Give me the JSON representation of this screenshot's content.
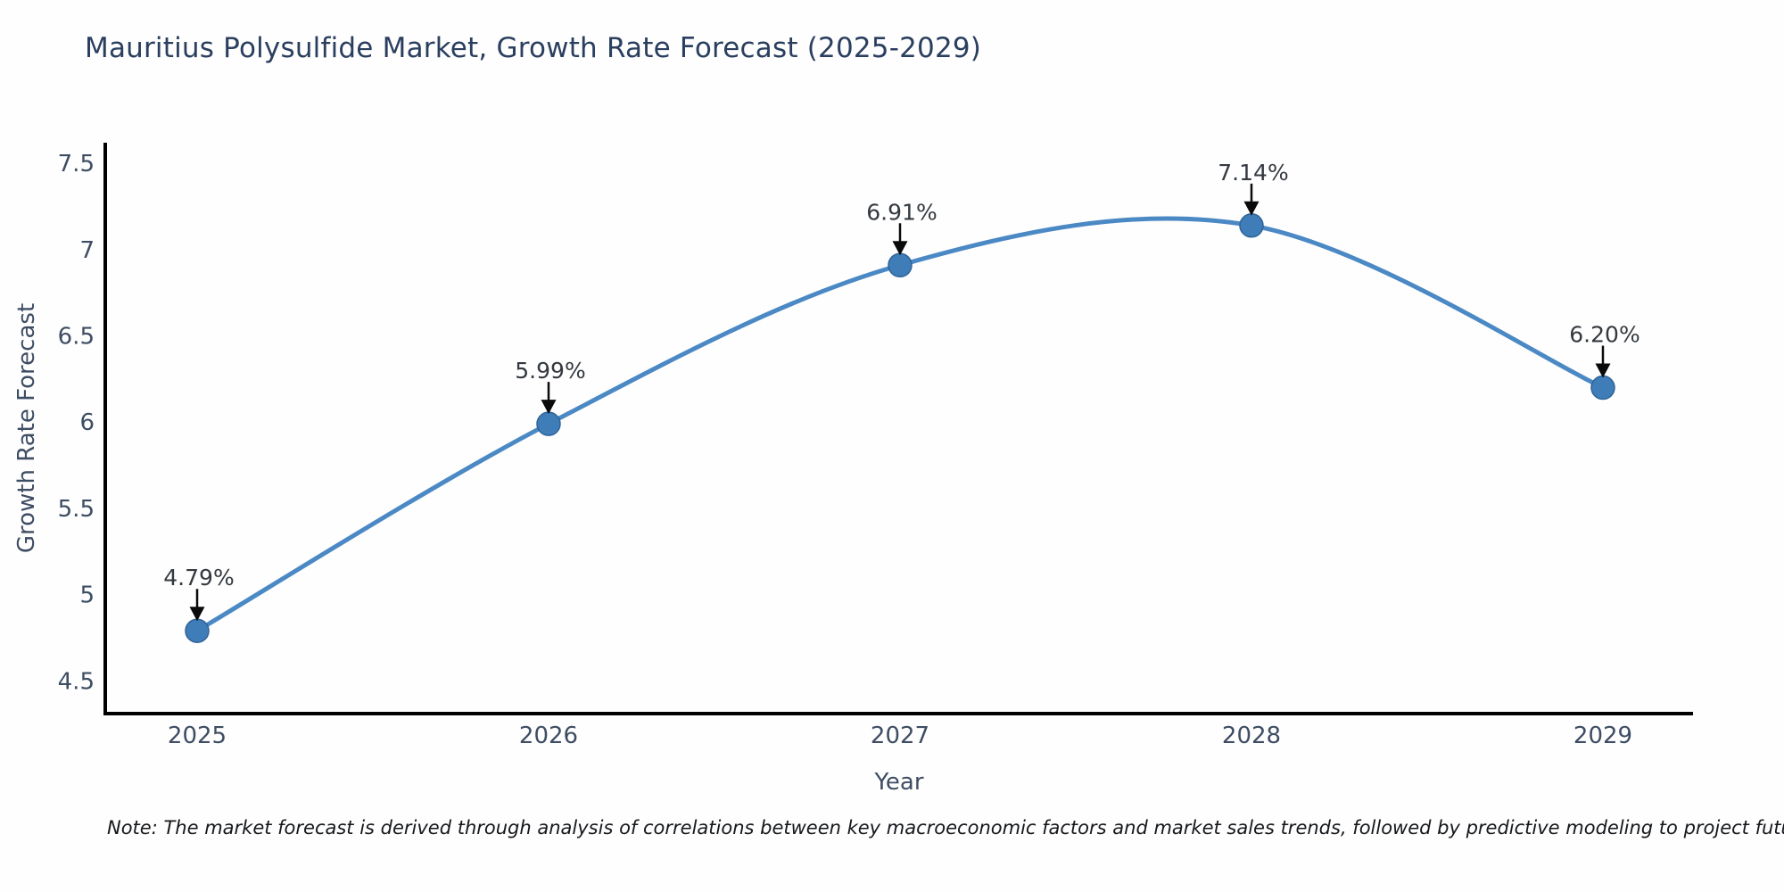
{
  "chart_data": {
    "type": "line",
    "line_shape": "spline",
    "title": "Mauritius Polysulfide Market, Growth Rate Forecast (2025-2029)",
    "xlabel": "Year",
    "ylabel": "Growth Rate Forecast",
    "categories": [
      "2025",
      "2026",
      "2027",
      "2028",
      "2029"
    ],
    "series": [
      {
        "name": "Growth Rate Forecast",
        "values": [
          4.79,
          5.99,
          6.91,
          7.14,
          6.2
        ]
      }
    ],
    "point_labels": [
      "4.79%",
      "5.99%",
      "6.91%",
      "7.14%",
      "6.20%"
    ],
    "ytick_labels": [
      "7.5",
      "7",
      "6.5",
      "6",
      "5.5",
      "5",
      "4.5"
    ],
    "ytick_values": [
      7.5,
      7.0,
      6.5,
      6.0,
      5.5,
      5.0,
      4.5
    ],
    "ylim": [
      4.31,
      7.62
    ],
    "grid": false,
    "legend": false,
    "markers": true,
    "annotations_with_arrows": true,
    "colors": {
      "line": "#4b89c5",
      "marker": "#3f7db8",
      "marker_edge": "#2e6398",
      "axis_line": "#000000",
      "tick_text": "#3d4d63",
      "title_text": "#2a3f5f",
      "annotation_text": "#33393f",
      "arrow": "#0a0a0a",
      "background": "#ffffff"
    }
  },
  "note": {
    "text": "Note: The market forecast is derived through analysis of correlations between key macroeconomic factors and market sales trends, followed by predictive modeling to project future sales"
  }
}
